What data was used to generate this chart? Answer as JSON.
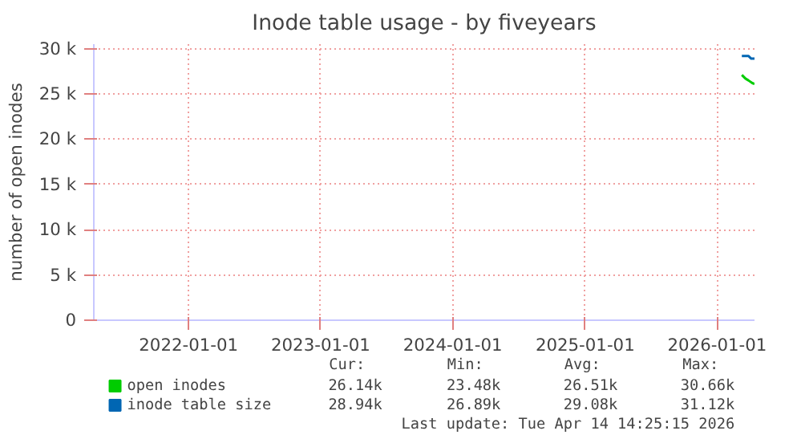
{
  "chart_data": {
    "type": "line",
    "title": "Inode table usage - by fiveyears",
    "ylabel": "number of open inodes",
    "xlim": [
      "2021-04-14",
      "2026-04-14"
    ],
    "xticks": [
      "2022-01-01",
      "2023-01-01",
      "2024-01-01",
      "2025-01-01",
      "2026-01-01"
    ],
    "ylim": [
      0,
      30500
    ],
    "yticks": [
      0,
      {
        "value": 5000,
        "label": "5 k"
      },
      {
        "value": 10000,
        "label": "10 k"
      },
      {
        "value": 15000,
        "label": "15 k"
      },
      {
        "value": 20000,
        "label": "20 k"
      },
      {
        "value": 25000,
        "label": "25 k"
      },
      {
        "value": 30000,
        "label": "30 k"
      }
    ],
    "grid": true,
    "legend": "bottom",
    "series": [
      {
        "name": "open inodes",
        "color": "#00cc00",
        "x": [
          "2026-03-10",
          "2026-03-20",
          "2026-03-28",
          "2026-04-08",
          "2026-04-14"
        ],
        "values": [
          27100,
          26700,
          26500,
          26200,
          26100
        ]
      },
      {
        "name": "inode table size",
        "color": "#0066b3",
        "x": [
          "2026-03-10",
          "2026-03-28",
          "2026-04-05",
          "2026-04-14"
        ],
        "values": [
          29200,
          29200,
          28900,
          28900
        ]
      }
    ],
    "annotations": [
      "Cur:",
      "Min:",
      "Avg:",
      "Max:",
      "26.14k",
      "23.48k",
      "26.51k",
      "30.66k",
      "28.94k",
      "26.89k",
      "29.08k",
      "31.12k",
      "Last update: Tue Apr 14 14:25:15 2026"
    ]
  }
}
